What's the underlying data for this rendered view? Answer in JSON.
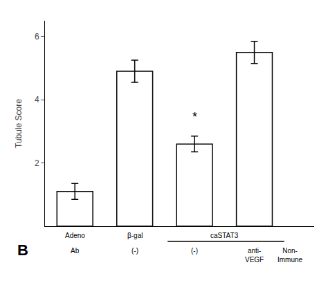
{
  "chart_data": {
    "type": "bar",
    "panel_label": "B",
    "categories": [
      "Ab",
      "(-)",
      "(-)",
      "anti-\nVEGF"
    ],
    "values": [
      1.1,
      4.9,
      2.6,
      5.5
    ],
    "errors": [
      0.25,
      0.35,
      0.25,
      0.35
    ],
    "color": "white",
    "ylabel": "Tubule Score",
    "ylim": [
      0,
      6.5
    ],
    "yticks": [
      2,
      4,
      6
    ],
    "grid": false,
    "tick_labels": "y",
    "annotations": [
      {
        "text": "*",
        "x": 2,
        "y": 3.2
      },
      {
        "text": "Adeno",
        "x": 0,
        "row": 1
      },
      {
        "text": "β-gal",
        "x": 1,
        "row": 1
      },
      {
        "text": "caSTAT3",
        "span": [
          2,
          3
        ],
        "row": 1
      },
      {
        "text": "Non-\nImmune",
        "x": 3.6,
        "row": 2
      }
    ]
  }
}
